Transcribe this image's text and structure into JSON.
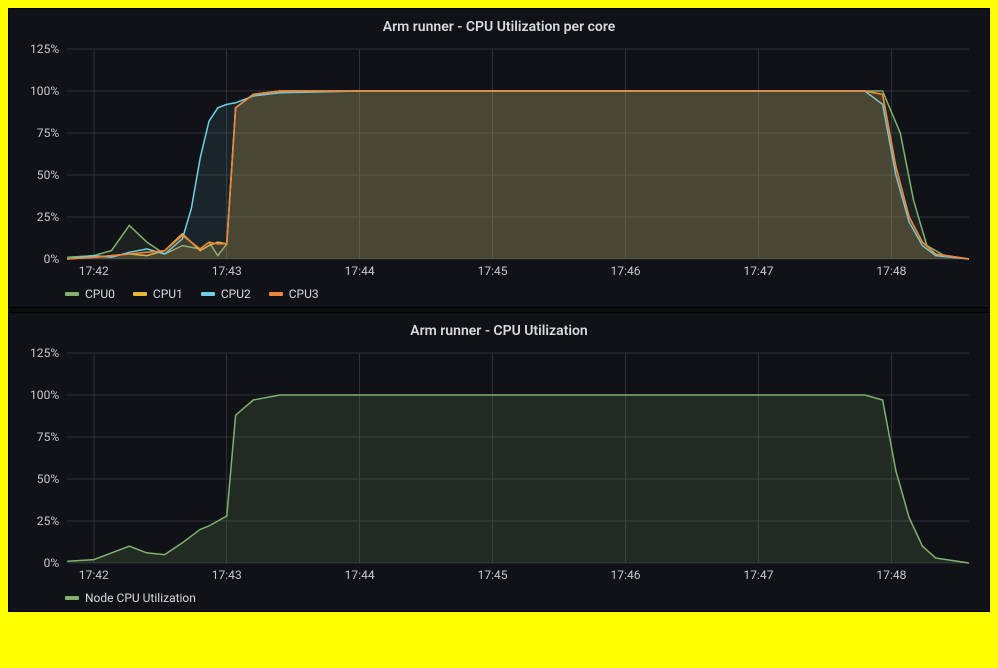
{
  "global": {
    "background_color": "#111217",
    "grid_color": "#2c3235",
    "axis_text_color": "#c7c9cb",
    "title_color": "#d8d9da",
    "title_fontsize": 14,
    "label_fontsize": 12,
    "outer_border_color": "#ffff00"
  },
  "x_axis": {
    "ticks": [
      "17:42",
      "17:43",
      "17:44",
      "17:45",
      "17:46",
      "17:47",
      "17:48"
    ],
    "tick_values": [
      0,
      60,
      120,
      180,
      240,
      300,
      360
    ],
    "xmin": -12,
    "xmax": 395
  },
  "y_axis": {
    "ticks": [
      "0%",
      "25%",
      "50%",
      "75%",
      "100%",
      "125%"
    ],
    "tick_values": [
      0,
      25,
      50,
      75,
      100,
      125
    ],
    "ymin": 0,
    "ymax": 125
  },
  "chart1": {
    "title": "Arm runner - CPU Utilization per core",
    "type": "area",
    "fill_opacity": 0.1,
    "line_width": 1.5,
    "series": [
      {
        "name": "CPU0",
        "color": "#7eb26d",
        "points": [
          [
            -12,
            1
          ],
          [
            0,
            2
          ],
          [
            8,
            5
          ],
          [
            16,
            20
          ],
          [
            24,
            10
          ],
          [
            32,
            3
          ],
          [
            40,
            8
          ],
          [
            48,
            6
          ],
          [
            52,
            10
          ],
          [
            56,
            2
          ],
          [
            60,
            9
          ],
          [
            64,
            90
          ],
          [
            72,
            98
          ],
          [
            84,
            100
          ],
          [
            120,
            100
          ],
          [
            180,
            100
          ],
          [
            240,
            100
          ],
          [
            300,
            100
          ],
          [
            348,
            100
          ],
          [
            356,
            100
          ],
          [
            364,
            75
          ],
          [
            370,
            35
          ],
          [
            376,
            8
          ],
          [
            384,
            2
          ],
          [
            395,
            0
          ]
        ]
      },
      {
        "name": "CPU1",
        "color": "#eab839",
        "points": [
          [
            -12,
            0
          ],
          [
            0,
            1
          ],
          [
            8,
            2
          ],
          [
            16,
            3
          ],
          [
            24,
            2
          ],
          [
            32,
            5
          ],
          [
            40,
            15
          ],
          [
            48,
            5
          ],
          [
            52,
            8
          ],
          [
            56,
            10
          ],
          [
            60,
            9
          ],
          [
            64,
            90
          ],
          [
            72,
            98
          ],
          [
            84,
            100
          ],
          [
            120,
            100
          ],
          [
            180,
            100
          ],
          [
            240,
            100
          ],
          [
            300,
            100
          ],
          [
            348,
            100
          ],
          [
            356,
            98
          ],
          [
            362,
            55
          ],
          [
            368,
            25
          ],
          [
            374,
            10
          ],
          [
            380,
            3
          ],
          [
            395,
            0
          ]
        ]
      },
      {
        "name": "CPU2",
        "color": "#6ed0e0",
        "points": [
          [
            -12,
            0
          ],
          [
            0,
            2
          ],
          [
            8,
            1
          ],
          [
            16,
            4
          ],
          [
            24,
            6
          ],
          [
            32,
            3
          ],
          [
            40,
            12
          ],
          [
            44,
            30
          ],
          [
            48,
            60
          ],
          [
            52,
            82
          ],
          [
            56,
            90
          ],
          [
            60,
            92
          ],
          [
            64,
            93
          ],
          [
            72,
            97
          ],
          [
            84,
            99
          ],
          [
            120,
            100
          ],
          [
            180,
            100
          ],
          [
            240,
            100
          ],
          [
            300,
            100
          ],
          [
            348,
            100
          ],
          [
            356,
            92
          ],
          [
            362,
            50
          ],
          [
            368,
            22
          ],
          [
            374,
            8
          ],
          [
            380,
            2
          ],
          [
            395,
            0
          ]
        ]
      },
      {
        "name": "CPU3",
        "color": "#ef843c",
        "points": [
          [
            -12,
            0
          ],
          [
            0,
            1
          ],
          [
            8,
            2
          ],
          [
            16,
            3
          ],
          [
            24,
            4
          ],
          [
            32,
            5
          ],
          [
            40,
            14
          ],
          [
            48,
            6
          ],
          [
            52,
            10
          ],
          [
            56,
            9
          ],
          [
            60,
            9
          ],
          [
            64,
            90
          ],
          [
            72,
            98
          ],
          [
            84,
            100
          ],
          [
            120,
            100
          ],
          [
            180,
            100
          ],
          [
            240,
            100
          ],
          [
            300,
            100
          ],
          [
            348,
            100
          ],
          [
            356,
            98
          ],
          [
            362,
            55
          ],
          [
            368,
            25
          ],
          [
            374,
            10
          ],
          [
            380,
            3
          ],
          [
            395,
            0
          ]
        ]
      }
    ]
  },
  "chart2": {
    "title": "Arm runner - CPU Utilization",
    "type": "area",
    "fill_opacity": 0.15,
    "line_width": 1.5,
    "series": [
      {
        "name": "Node CPU Utilization",
        "color": "#7eb26d",
        "points": [
          [
            -12,
            1
          ],
          [
            0,
            2
          ],
          [
            8,
            6
          ],
          [
            16,
            10
          ],
          [
            24,
            6
          ],
          [
            32,
            5
          ],
          [
            40,
            12
          ],
          [
            48,
            20
          ],
          [
            52,
            22
          ],
          [
            56,
            25
          ],
          [
            60,
            28
          ],
          [
            64,
            88
          ],
          [
            72,
            97
          ],
          [
            84,
            100
          ],
          [
            120,
            100
          ],
          [
            180,
            100
          ],
          [
            240,
            100
          ],
          [
            300,
            100
          ],
          [
            348,
            100
          ],
          [
            356,
            97
          ],
          [
            362,
            55
          ],
          [
            368,
            27
          ],
          [
            374,
            10
          ],
          [
            380,
            3
          ],
          [
            395,
            0
          ]
        ]
      }
    ]
  }
}
